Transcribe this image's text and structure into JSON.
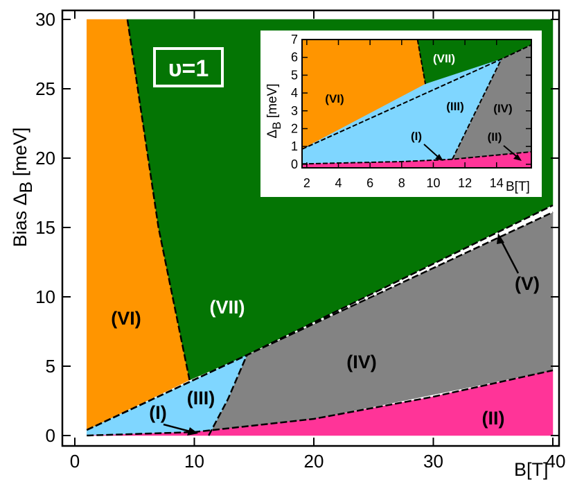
{
  "chart_data": [
    {
      "type": "area",
      "ylabel_prefix": "Bias Δ",
      "ylabel_sub": "B",
      "ylabel_suffix": " [meV]",
      "xlabel": "B[T]",
      "xlim": [
        0,
        40
      ],
      "ylim": [
        0,
        30
      ],
      "xticks": [
        0,
        10,
        20,
        30,
        40
      ],
      "yticks": [
        0,
        5,
        10,
        15,
        20,
        25,
        30
      ],
      "legend_label": "υ=1",
      "colors": {
        "VI": "#ff9500",
        "VII": "#047504",
        "III": "#7fd6ff",
        "IV": "#838383",
        "II": "#ff3498",
        "V": "#ffffff",
        "I": "#ff3498"
      },
      "boundaries": {
        "lower_pink_top": [
          [
            1,
            0
          ],
          [
            10,
            0.25
          ],
          [
            20,
            1.2
          ],
          [
            30,
            2.8
          ],
          [
            40,
            4.7
          ]
        ],
        "v_bottom": [
          [
            1,
            0.4
          ],
          [
            14.4,
            5.8
          ],
          [
            40,
            16.1
          ]
        ],
        "v_top": [
          [
            1,
            0.4
          ],
          [
            14.4,
            5.8
          ],
          [
            40,
            16.6
          ]
        ],
        "vi_vii": [
          [
            4.4,
            30
          ],
          [
            7,
            15
          ],
          [
            9.6,
            4
          ]
        ],
        "iii_iv": [
          [
            11.2,
            0
          ],
          [
            12.8,
            2.6
          ],
          [
            14.4,
            5.8
          ]
        ]
      },
      "region_labels": [
        "(VI)",
        "(VII)",
        "(III)",
        "(IV)",
        "(II)",
        "(I)",
        "(V)"
      ]
    },
    {
      "type": "area",
      "xlabel": "B[T]",
      "ylabel_prefix": "Δ",
      "ylabel_sub": "B",
      "ylabel_suffix": " [meV]",
      "xlim": [
        1.7,
        16.2
      ],
      "ylim": [
        -0.2,
        7
      ],
      "xticks": [
        2,
        4,
        6,
        8,
        10,
        12,
        14
      ],
      "yticks": [
        0,
        1,
        2,
        3,
        4,
        5,
        6,
        7
      ],
      "boundaries": {
        "lower_pink_top": [
          [
            1.7,
            0.02
          ],
          [
            8,
            0.15
          ],
          [
            11.2,
            0.28
          ],
          [
            16.2,
            0.7
          ]
        ],
        "v_line": [
          [
            1.7,
            0.85
          ],
          [
            14.3,
            5.9
          ],
          [
            16.2,
            6.7
          ]
        ],
        "vi_vii": [
          [
            9,
            7
          ],
          [
            9.5,
            4.5
          ]
        ],
        "iii_iv": [
          [
            11.2,
            0.28
          ],
          [
            12.7,
            3.0
          ],
          [
            14.3,
            5.9
          ]
        ]
      },
      "region_labels": [
        "(VII)",
        "(VI)",
        "(III)",
        "(IV)",
        "(I)",
        "(II)"
      ]
    }
  ]
}
